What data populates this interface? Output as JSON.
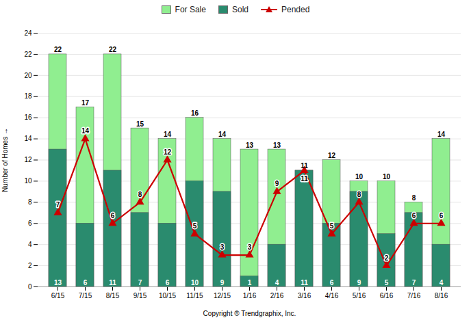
{
  "chart_data": {
    "type": "bar",
    "xlabel": "Copyright ® Trendgraphix, Inc.",
    "ylabel": "Number of Homes",
    "categories": [
      "6/15",
      "7/15",
      "8/15",
      "9/15",
      "10/15",
      "11/15",
      "12/15",
      "1/16",
      "2/16",
      "3/16",
      "4/16",
      "5/16",
      "6/16",
      "7/16",
      "8/16"
    ],
    "series": [
      {
        "name": "For Sale",
        "type": "bar",
        "color": "#90EE90",
        "values": [
          22,
          17,
          22,
          15,
          14,
          16,
          14,
          13,
          13,
          11,
          12,
          10,
          10,
          8,
          14
        ]
      },
      {
        "name": "Sold",
        "type": "bar",
        "color": "#2A8B6E",
        "values": [
          13,
          6,
          11,
          7,
          6,
          10,
          9,
          1,
          4,
          11,
          6,
          9,
          5,
          7,
          4
        ]
      },
      {
        "name": "Pended",
        "type": "line",
        "color": "#CC0000",
        "marker": "triangle",
        "values": [
          7,
          14,
          6,
          8,
          12,
          5,
          3,
          3,
          9,
          11,
          5,
          8,
          2,
          6,
          6
        ]
      }
    ],
    "ylim": [
      0,
      24
    ],
    "yticks": [
      0,
      2,
      4,
      6,
      8,
      10,
      12,
      14,
      16,
      18,
      20,
      22,
      24
    ],
    "grid": true,
    "stacked": false,
    "data_labels": true,
    "legend": "top"
  }
}
